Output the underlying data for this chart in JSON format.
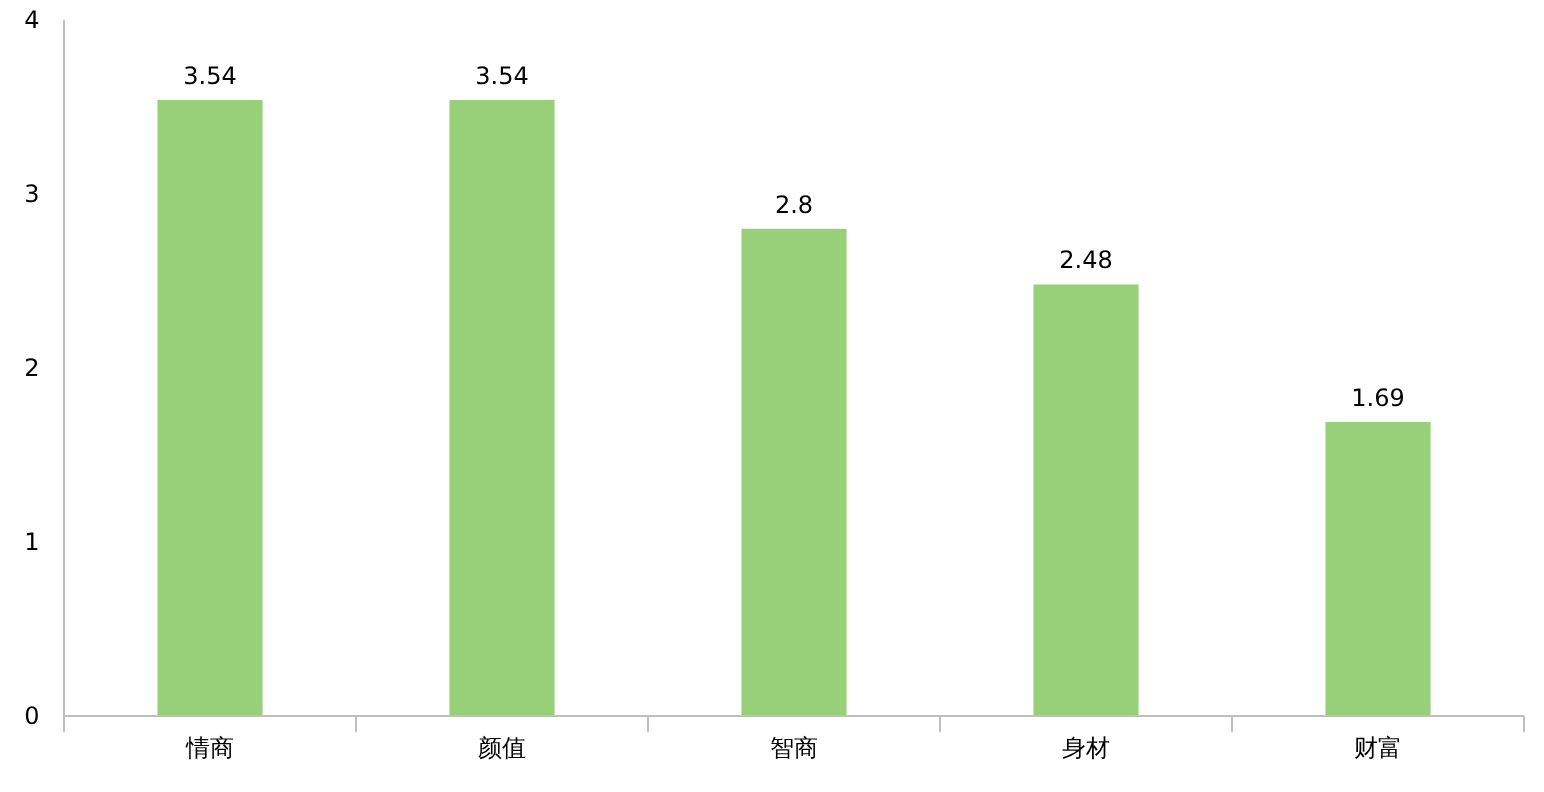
{
  "chart_data": {
    "type": "bar",
    "categories": [
      "情商",
      "颜值",
      "智商",
      "身材",
      "财富"
    ],
    "values": [
      3.54,
      3.54,
      2.8,
      2.48,
      1.69
    ],
    "color": "#98d07a",
    "ylim": [
      0,
      4
    ],
    "yticks": [
      0,
      1,
      2,
      3,
      4
    ],
    "grid": false,
    "data_labels": true
  }
}
